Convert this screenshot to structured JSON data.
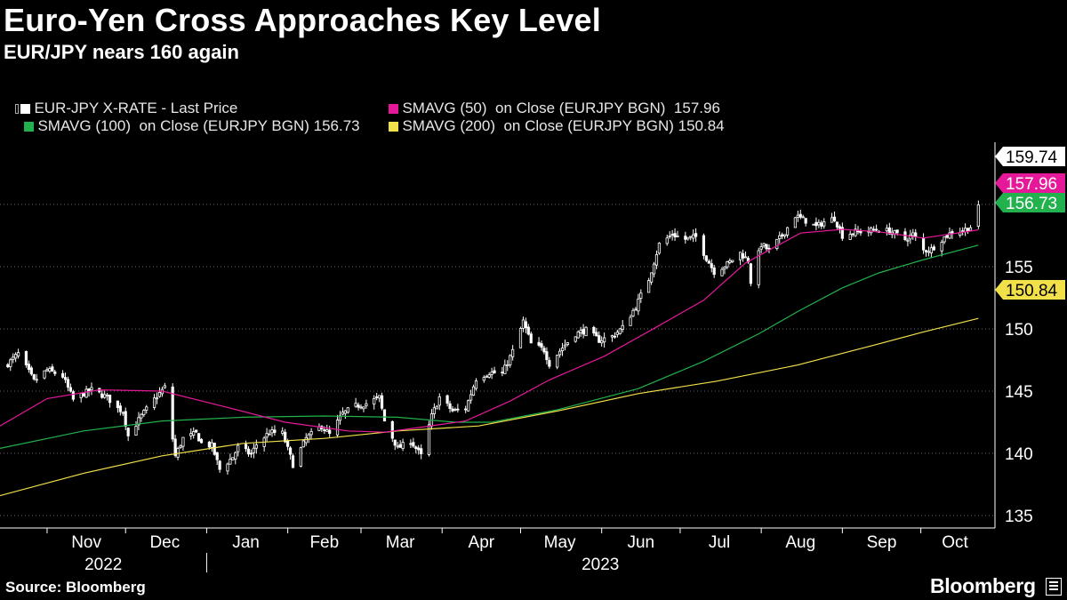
{
  "header": {
    "title": "Euro-Yen Cross Approaches Key Level",
    "subtitle": "EUR/JPY nears 160 again"
  },
  "legend": [
    {
      "label": "EUR-JPY X-RATE - Last Price",
      "color": "#ffffff"
    },
    {
      "label": "SMAVG (50)  on Close (EURJPY BGN)  157.96",
      "color": "#e6189a"
    },
    {
      "label": "SMAVG (100)  on Close (EURJPY BGN) 156.73",
      "color": "#22b14c"
    },
    {
      "label": "SMAVG (200)  on Close (EURJPY BGN) 150.84",
      "color": "#f2e04a"
    }
  ],
  "footer": {
    "source": "Source: Bloomberg",
    "brand": "Bloomberg"
  },
  "chart_data": {
    "type": "line",
    "ylim": [
      134,
      165
    ],
    "yticks": [
      135,
      140,
      145,
      150,
      155
    ],
    "x_months": [
      "Nov",
      "Dec",
      "Jan",
      "Feb",
      "Mar",
      "Apr",
      "May",
      "Jun",
      "Jul",
      "Aug",
      "Sep",
      "Oct"
    ],
    "x_years": [
      "2022",
      "2023"
    ],
    "end_labels": [
      {
        "series": "EUR-JPY X-RATE - Last Price",
        "text": "159.74",
        "value": 159.74,
        "bg": "#ffffff",
        "fg": "#000000"
      },
      {
        "series": "SMAVG (50)",
        "text": "157.96",
        "value": 157.96,
        "bg": "#e6189a",
        "fg": "#ffffff"
      },
      {
        "series": "SMAVG (100)",
        "text": "156.73",
        "value": 156.73,
        "bg": "#22b14c",
        "fg": "#ffffff"
      },
      {
        "series": "SMAVG (200)",
        "text": "150.84",
        "value": 150.84,
        "bg": "#f2e04a",
        "fg": "#000000"
      }
    ],
    "price_anchors": [
      [
        "2022-10-16",
        147.0
      ],
      [
        "2022-10-21",
        148.0
      ],
      [
        "2022-10-27",
        145.8
      ],
      [
        "2022-11-01",
        146.7
      ],
      [
        "2022-11-07",
        146.2
      ],
      [
        "2022-11-11",
        144.3
      ],
      [
        "2022-11-15",
        144.8
      ],
      [
        "2022-11-18",
        145.1
      ],
      [
        "2022-11-24",
        144.5
      ],
      [
        "2022-11-28",
        143.6
      ],
      [
        "2022-11-30",
        143.4
      ],
      [
        "2022-12-02",
        141.4
      ],
      [
        "2022-12-07",
        143.0
      ],
      [
        "2022-12-13",
        144.6
      ],
      [
        "2022-12-16",
        145.3
      ],
      [
        "2022-12-20",
        139.8
      ],
      [
        "2022-12-23",
        141.2
      ],
      [
        "2022-12-28",
        141.6
      ],
      [
        "2022-12-30",
        140.8
      ],
      [
        "2023-01-03",
        140.6
      ],
      [
        "2023-01-06",
        138.7
      ],
      [
        "2023-01-11",
        139.7
      ],
      [
        "2023-01-13",
        140.5
      ],
      [
        "2023-01-18",
        139.9
      ],
      [
        "2023-01-20",
        140.7
      ],
      [
        "2023-01-25",
        141.7
      ],
      [
        "2023-01-30",
        141.6
      ],
      [
        "2023-02-03",
        139.1
      ],
      [
        "2023-02-08",
        141.2
      ],
      [
        "2023-02-14",
        142.2
      ],
      [
        "2023-02-17",
        141.5
      ],
      [
        "2023-02-22",
        143.2
      ],
      [
        "2023-02-27",
        143.8
      ],
      [
        "2023-03-03",
        144.0
      ],
      [
        "2023-03-08",
        144.5
      ],
      [
        "2023-03-10",
        142.6
      ],
      [
        "2023-03-15",
        140.4
      ],
      [
        "2023-03-20",
        141.0
      ],
      [
        "2023-03-24",
        139.8
      ],
      [
        "2023-03-28",
        143.0
      ],
      [
        "2023-03-31",
        144.5
      ],
      [
        "2023-04-05",
        143.4
      ],
      [
        "2023-04-10",
        143.6
      ],
      [
        "2023-04-14",
        146.0
      ],
      [
        "2023-04-19",
        146.5
      ],
      [
        "2023-04-24",
        146.4
      ],
      [
        "2023-04-28",
        148.2
      ],
      [
        "2023-05-02",
        150.6
      ],
      [
        "2023-05-05",
        148.8
      ],
      [
        "2023-05-10",
        148.3
      ],
      [
        "2023-05-12",
        147.2
      ],
      [
        "2023-05-17",
        148.5
      ],
      [
        "2023-05-22",
        149.6
      ],
      [
        "2023-05-26",
        149.9
      ],
      [
        "2023-05-31",
        149.1
      ],
      [
        "2023-06-05",
        149.4
      ],
      [
        "2023-06-09",
        150.1
      ],
      [
        "2023-06-14",
        151.8
      ],
      [
        "2023-06-19",
        154.0
      ],
      [
        "2023-06-23",
        156.8
      ],
      [
        "2023-06-28",
        157.6
      ],
      [
        "2023-07-03",
        157.2
      ],
      [
        "2023-07-07",
        157.4
      ],
      [
        "2023-07-11",
        155.7
      ],
      [
        "2023-07-14",
        154.6
      ],
      [
        "2023-07-19",
        155.2
      ],
      [
        "2023-07-24",
        156.1
      ],
      [
        "2023-07-27",
        155.5
      ],
      [
        "2023-07-28",
        153.8
      ],
      [
        "2023-08-01",
        156.8
      ],
      [
        "2023-08-04",
        156.3
      ],
      [
        "2023-08-09",
        157.5
      ],
      [
        "2023-08-14",
        159.1
      ],
      [
        "2023-08-18",
        158.7
      ],
      [
        "2023-08-22",
        158.2
      ],
      [
        "2023-08-25",
        158.6
      ],
      [
        "2023-08-29",
        158.9
      ],
      [
        "2023-09-01",
        157.5
      ],
      [
        "2023-09-06",
        157.8
      ],
      [
        "2023-09-11",
        157.9
      ],
      [
        "2023-09-15",
        158.0
      ],
      [
        "2023-09-20",
        157.8
      ],
      [
        "2023-09-25",
        157.2
      ],
      [
        "2023-09-28",
        157.6
      ],
      [
        "2023-10-02",
        156.3
      ],
      [
        "2023-10-05",
        156.4
      ],
      [
        "2023-10-09",
        157.2
      ],
      [
        "2023-10-13",
        157.8
      ],
      [
        "2023-10-17",
        157.9
      ],
      [
        "2023-10-20",
        158.2
      ],
      [
        "2023-10-23",
        159.74
      ]
    ],
    "sma50_points": [
      [
        "2022-10-14",
        142.2
      ],
      [
        "2022-11-01",
        144.4
      ],
      [
        "2022-11-21",
        145.1
      ],
      [
        "2022-12-15",
        145.0
      ],
      [
        "2023-01-05",
        143.9
      ],
      [
        "2023-01-31",
        142.5
      ],
      [
        "2023-02-24",
        141.8
      ],
      [
        "2023-03-10",
        141.7
      ],
      [
        "2023-03-24",
        142.1
      ],
      [
        "2023-04-10",
        142.6
      ],
      [
        "2023-04-27",
        144.2
      ],
      [
        "2023-05-12",
        145.9
      ],
      [
        "2023-06-02",
        147.8
      ],
      [
        "2023-06-19",
        149.8
      ],
      [
        "2023-07-10",
        152.3
      ],
      [
        "2023-07-26",
        155.3
      ],
      [
        "2023-08-16",
        157.7
      ],
      [
        "2023-09-01",
        158.0
      ],
      [
        "2023-09-15",
        157.8
      ],
      [
        "2023-10-02",
        157.3
      ],
      [
        "2023-10-23",
        157.96
      ]
    ],
    "sma100_points": [
      [
        "2022-10-14",
        140.4
      ],
      [
        "2022-11-15",
        141.8
      ],
      [
        "2022-12-15",
        142.6
      ],
      [
        "2023-01-15",
        142.9
      ],
      [
        "2023-02-15",
        143.0
      ],
      [
        "2023-03-15",
        142.9
      ],
      [
        "2023-04-06",
        142.5
      ],
      [
        "2023-04-20",
        142.5
      ],
      [
        "2023-05-15",
        143.5
      ],
      [
        "2023-06-15",
        145.2
      ],
      [
        "2023-07-10",
        147.4
      ],
      [
        "2023-07-31",
        149.6
      ],
      [
        "2023-08-15",
        151.4
      ],
      [
        "2023-09-01",
        153.3
      ],
      [
        "2023-09-15",
        154.5
      ],
      [
        "2023-10-01",
        155.5
      ],
      [
        "2023-10-23",
        156.73
      ]
    ],
    "sma200_points": [
      [
        "2022-10-14",
        136.6
      ],
      [
        "2022-11-15",
        138.4
      ],
      [
        "2022-12-15",
        139.8
      ],
      [
        "2023-01-15",
        140.8
      ],
      [
        "2023-02-15",
        141.2
      ],
      [
        "2023-03-15",
        141.8
      ],
      [
        "2023-04-15",
        142.2
      ],
      [
        "2023-05-15",
        143.4
      ],
      [
        "2023-06-15",
        144.8
      ],
      [
        "2023-07-15",
        145.8
      ],
      [
        "2023-08-15",
        147.1
      ],
      [
        "2023-09-15",
        148.8
      ],
      [
        "2023-10-01",
        149.7
      ],
      [
        "2023-10-23",
        150.84
      ]
    ]
  }
}
